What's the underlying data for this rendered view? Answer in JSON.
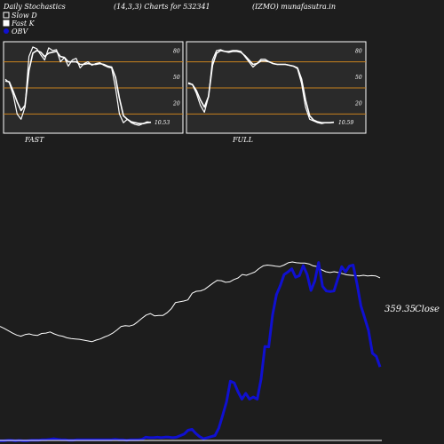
{
  "header": {
    "title": "Daily Stochastics",
    "params": "(14,3,3) Charts for 532341",
    "site": "(IZMO) munafasutra.in"
  },
  "legend": {
    "slow_d": "Slow  D",
    "fast_k": "Fast K",
    "obv": "OBV"
  },
  "colors": {
    "background": "#1d1d1d",
    "panel": "#2a2a2a",
    "level_line": "#c8821e",
    "stoch_line": "#ffffff",
    "price_line": "#ffffff",
    "obv_line": "#1010d0"
  },
  "chart_data": [
    {
      "type": "line",
      "panel": "FAST",
      "title": "FAST",
      "y_ticks": [
        "80",
        "50",
        "20"
      ],
      "ylim": [
        0,
        100
      ],
      "levels": [
        80,
        50,
        20
      ],
      "last_value_label": "10.53",
      "series": [
        {
          "name": "Fast K",
          "values": [
            60,
            56,
            42,
            20,
            14,
            28,
            86,
            97,
            95,
            88,
            82,
            96,
            93,
            94,
            80,
            85,
            75,
            82,
            84,
            73,
            78,
            80,
            76,
            78,
            79,
            76,
            74,
            73,
            50,
            20,
            10,
            14,
            10,
            8,
            7,
            9,
            11,
            10.53
          ]
        },
        {
          "name": "Slow  D",
          "values": [
            58,
            57,
            46,
            34,
            24,
            30,
            70,
            90,
            93,
            91,
            86,
            90,
            91,
            92,
            86,
            85,
            80,
            80,
            80,
            77,
            77,
            78,
            77,
            77,
            78,
            77,
            75,
            74,
            62,
            38,
            18,
            14,
            11,
            10,
            9,
            9,
            10,
            10.5
          ]
        }
      ]
    },
    {
      "type": "line",
      "panel": "FULL",
      "title": "FULL",
      "y_ticks": [
        "80",
        "50",
        "20"
      ],
      "ylim": [
        0,
        100
      ],
      "levels": [
        80,
        50,
        20
      ],
      "last_value_label": "10.59",
      "series": [
        {
          "name": "Fast K",
          "values": [
            56,
            54,
            44,
            30,
            22,
            40,
            82,
            93,
            94,
            92,
            92,
            93,
            93,
            92,
            86,
            80,
            74,
            78,
            83,
            83,
            80,
            78,
            77,
            77,
            77,
            76,
            75,
            72,
            55,
            28,
            14,
            12,
            10,
            9,
            10,
            10,
            10.59
          ]
        },
        {
          "name": "Slow  D",
          "values": [
            55,
            54,
            47,
            36,
            28,
            40,
            76,
            90,
            93,
            92,
            91,
            92,
            92,
            91,
            87,
            82,
            77,
            78,
            81,
            81,
            80,
            78,
            77,
            77,
            77,
            76,
            75,
            73,
            60,
            36,
            18,
            13,
            11,
            10,
            10,
            10,
            10.5
          ]
        }
      ]
    },
    {
      "type": "line",
      "panel": "price",
      "last_value_label": "359.35",
      "close_label": "Close",
      "series": [
        {
          "name": "Close",
          "values": [
            235,
            230,
            224,
            218,
            213,
            210,
            214,
            216,
            213,
            212,
            217,
            218,
            221,
            216,
            212,
            210,
            206,
            204,
            203,
            202,
            200,
            198,
            196,
            200,
            203,
            208,
            212,
            218,
            226,
            235,
            237,
            236,
            239,
            247,
            256,
            264,
            268,
            262,
            263,
            263,
            270,
            280,
            296,
            298,
            300,
            303,
            320,
            325,
            326,
            330,
            338,
            346,
            353,
            352,
            348,
            349,
            355,
            359,
            368,
            366,
            370,
            374,
            383,
            390,
            392,
            391,
            389,
            388,
            392,
            398,
            400,
            398,
            397,
            397,
            395,
            390,
            388,
            380,
            375,
            373,
            375,
            373,
            370,
            367,
            366,
            365,
            364,
            366,
            364,
            365,
            364,
            359.35
          ]
        },
        {
          "name": "OBV",
          "values": [
            -44,
            -44,
            -43,
            -43,
            -44,
            -43,
            -44,
            -44,
            -43,
            -43,
            -43,
            -42,
            -42,
            -41,
            -40,
            -41,
            -42,
            -42,
            -43,
            -43,
            -42,
            -42,
            -42,
            -42,
            -42,
            -42,
            -42,
            -42,
            -42,
            -42,
            -41,
            -42,
            -42,
            -43,
            -42,
            -42,
            -42,
            -41,
            -37,
            -38,
            -38,
            -37,
            -38,
            -37,
            -37,
            -38,
            -37,
            -34,
            -31,
            -24,
            -22,
            -30,
            -36,
            -40,
            -38,
            -36,
            -34,
            -20,
            4,
            30,
            69,
            66,
            49,
            35,
            46,
            35,
            39,
            35,
            73,
            135,
            134,
            194,
            233,
            250,
            271,
            276,
            282,
            266,
            269,
            288,
            271,
            241,
            259,
            294,
            249,
            240,
            239,
            240,
            263,
            286,
            276,
            287,
            289,
            253,
            212,
            189,
            165,
            122,
            116,
            96
          ]
        }
      ]
    }
  ]
}
